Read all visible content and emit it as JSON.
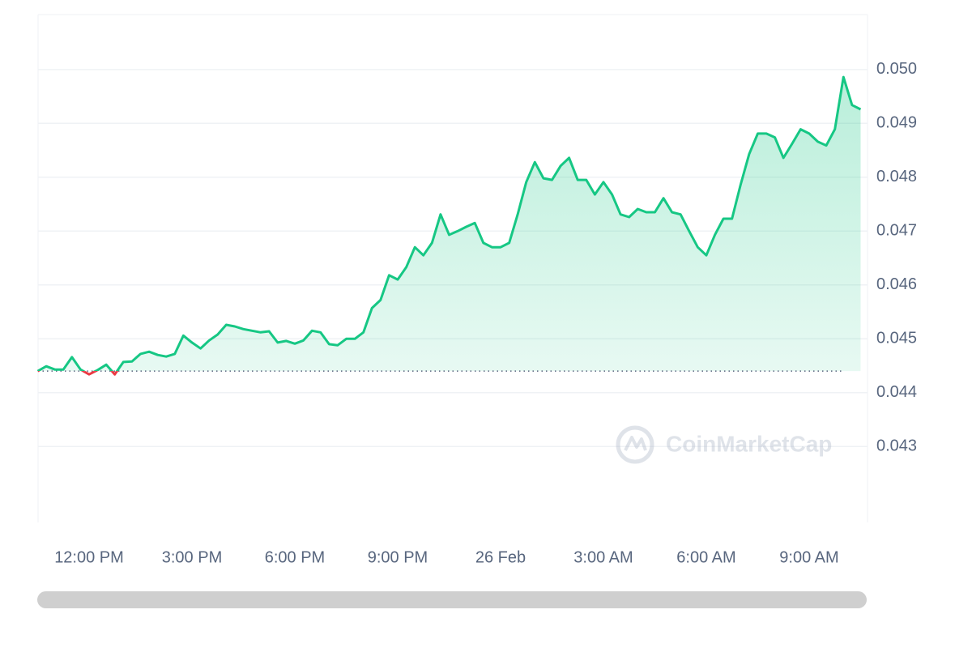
{
  "chart_data": {
    "type": "line",
    "watermark": "CoinMarketCap",
    "categories": [
      null,
      null,
      null,
      null,
      null,
      null,
      "12:00 PM",
      null,
      null,
      null,
      null,
      null,
      null,
      null,
      null,
      null,
      null,
      null,
      "3:00 PM",
      null,
      null,
      null,
      null,
      null,
      null,
      null,
      null,
      null,
      null,
      null,
      "6:00 PM",
      null,
      null,
      null,
      null,
      null,
      null,
      null,
      null,
      null,
      null,
      null,
      "9:00 PM",
      null,
      null,
      null,
      null,
      null,
      null,
      null,
      null,
      null,
      null,
      null,
      "26 Feb",
      null,
      null,
      null,
      null,
      null,
      null,
      null,
      null,
      null,
      null,
      null,
      "3:00 AM",
      null,
      null,
      null,
      null,
      null,
      null,
      null,
      null,
      null,
      null,
      null,
      "6:00 AM",
      null,
      null,
      null,
      null,
      null,
      null,
      null,
      null,
      null,
      null,
      null,
      "9:00 AM",
      null,
      null,
      null,
      null,
      null,
      null
    ],
    "series": [
      {
        "color": "#16c784",
        "below_color": "#ea3943",
        "values": [
          0.0444,
          0.04449,
          0.04443,
          0.04443,
          0.04466,
          0.04443,
          0.04434,
          0.04442,
          0.04452,
          0.04434,
          0.04457,
          0.04458,
          0.04472,
          0.04476,
          0.0447,
          0.04467,
          0.04472,
          0.04506,
          0.04493,
          0.04482,
          0.04497,
          0.04508,
          0.04526,
          0.04523,
          0.04518,
          0.04515,
          0.04512,
          0.04514,
          0.04493,
          0.04496,
          0.04491,
          0.04497,
          0.04515,
          0.04512,
          0.0449,
          0.04488,
          0.045,
          0.045,
          0.04512,
          0.04557,
          0.04572,
          0.04618,
          0.0461,
          0.04633,
          0.0467,
          0.04655,
          0.04678,
          0.04731,
          0.04693,
          0.047,
          0.04708,
          0.04715,
          0.04678,
          0.0467,
          0.0467,
          0.04678,
          0.04731,
          0.04791,
          0.04828,
          0.04798,
          0.04795,
          0.04821,
          0.04836,
          0.04795,
          0.04795,
          0.04768,
          0.04791,
          0.04768,
          0.04731,
          0.04726,
          0.04741,
          0.04735,
          0.04735,
          0.04761,
          0.04735,
          0.04731,
          0.047,
          0.0467,
          0.04655,
          0.04693,
          0.04723,
          0.04723,
          0.04786,
          0.04843,
          0.04881,
          0.04881,
          0.04874,
          0.04836,
          0.04862,
          0.04889,
          0.04881,
          0.04866,
          0.04859,
          0.04889,
          0.04986,
          0.04934,
          0.04926
        ]
      }
    ],
    "baseline": 0.0444,
    "ylim": [
      0.04159,
      0.05102
    ],
    "yticks": [
      0.043,
      0.044,
      0.045,
      0.046,
      0.047,
      0.048,
      0.049,
      {
        "value": 0.05,
        "label": "0.050"
      }
    ],
    "grid": true
  }
}
